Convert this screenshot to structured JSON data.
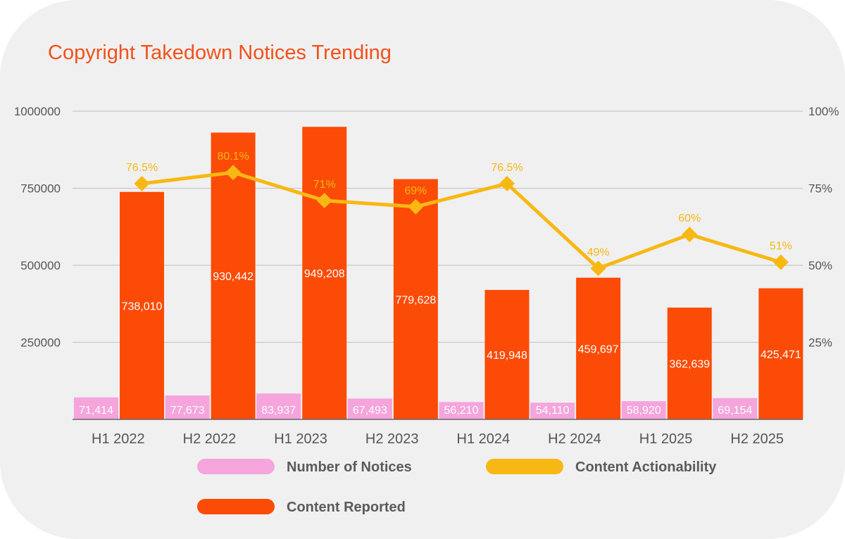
{
  "chart_data": {
    "type": "bar",
    "title": "Copyright Takedown Notices Trending",
    "categories": [
      "H1 2022",
      "H2 2022",
      "H1 2023",
      "H2 2023",
      "H1 2024",
      "H2 2024",
      "H1 2025",
      "H2 2025"
    ],
    "series": [
      {
        "name": "Number of Notices",
        "type": "bar",
        "axis": "left",
        "color": "#f5a4dc",
        "values": [
          71414,
          77673,
          83937,
          67493,
          56210,
          54110,
          58920,
          69154
        ],
        "labels": [
          "71,414",
          "77,673",
          "83,937",
          "67,493",
          "56,210",
          "54,110",
          "58,920",
          "69,154"
        ]
      },
      {
        "name": "Content Reported",
        "type": "bar",
        "axis": "left",
        "color": "#fb4b06",
        "values": [
          738010,
          930442,
          949208,
          779628,
          419948,
          459697,
          362639,
          425471
        ],
        "labels": [
          "738,010",
          "930,442",
          "949,208",
          "779,628",
          "419,948",
          "459,697",
          "362,639",
          "425,471"
        ]
      },
      {
        "name": "Content Actionability",
        "type": "line",
        "axis": "right",
        "color": "#f8b813",
        "values": [
          76.5,
          80.1,
          71,
          69,
          76.5,
          49,
          60,
          51
        ],
        "labels": [
          "76.5%",
          "80.1%",
          "71%",
          "69%",
          "76.5%",
          "49%",
          "60%",
          "51%"
        ]
      }
    ],
    "y_left": {
      "range": [
        0,
        1000000
      ],
      "ticks": [
        1000000,
        750000,
        500000,
        250000
      ],
      "tick_labels": [
        "1000000",
        "750000",
        "500000",
        "250000"
      ]
    },
    "y_right": {
      "range": [
        0,
        100
      ],
      "ticks": [
        100,
        75,
        50,
        25
      ],
      "tick_labels": [
        "100%",
        "75%",
        "50%",
        "25%"
      ]
    },
    "grid": true,
    "legend": {
      "position": "bottom",
      "items": [
        {
          "label": "Number of Notices",
          "color": "#f5a4dc"
        },
        {
          "label": "Content Actionability",
          "color": "#f8b813"
        },
        {
          "label": "Content Reported",
          "color": "#fb4b06"
        }
      ]
    },
    "colors": {
      "title": "#f2511b",
      "grid": "#c8c8c8",
      "axis": "#666666",
      "text": "#555555"
    }
  }
}
